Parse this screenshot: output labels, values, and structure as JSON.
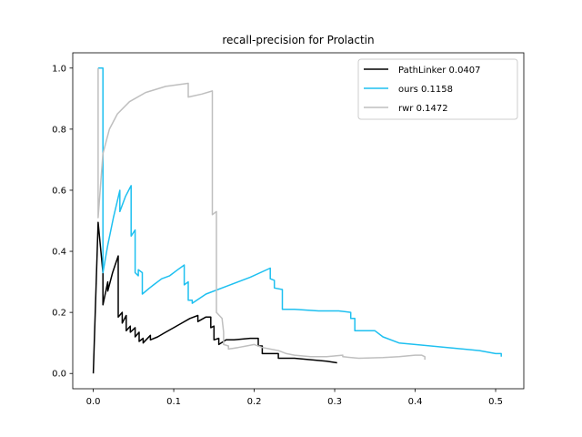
{
  "chart_data": {
    "type": "line",
    "title": "recall-precision for Prolactin",
    "xlabel": "",
    "ylabel": "",
    "xlim": [
      -0.0255,
      0.535
    ],
    "ylim": [
      -0.05,
      1.05
    ],
    "xticks": [
      0.0,
      0.1,
      0.2,
      0.3,
      0.4,
      0.5
    ],
    "xtick_labels": [
      "0.0",
      "0.1",
      "0.2",
      "0.3",
      "0.4",
      "0.5"
    ],
    "yticks": [
      0.0,
      0.2,
      0.4,
      0.6,
      0.8,
      1.0
    ],
    "ytick_labels": [
      "0.0",
      "0.2",
      "0.4",
      "0.6",
      "0.8",
      "1.0"
    ],
    "grid": false,
    "legend_position": "top-right",
    "series": [
      {
        "name": "PathLinker 0.0407",
        "color": "#000000",
        "points": [
          [
            0.0,
            0.0
          ],
          [
            0.006,
            0.495
          ],
          [
            0.012,
            0.33
          ],
          [
            0.012,
            0.225
          ],
          [
            0.018,
            0.3
          ],
          [
            0.018,
            0.27
          ],
          [
            0.024,
            0.33
          ],
          [
            0.031,
            0.385
          ],
          [
            0.031,
            0.185
          ],
          [
            0.036,
            0.2
          ],
          [
            0.036,
            0.165
          ],
          [
            0.041,
            0.19
          ],
          [
            0.041,
            0.14
          ],
          [
            0.046,
            0.155
          ],
          [
            0.046,
            0.135
          ],
          [
            0.052,
            0.15
          ],
          [
            0.052,
            0.12
          ],
          [
            0.057,
            0.135
          ],
          [
            0.057,
            0.105
          ],
          [
            0.062,
            0.115
          ],
          [
            0.062,
            0.1
          ],
          [
            0.071,
            0.125
          ],
          [
            0.071,
            0.11
          ],
          [
            0.08,
            0.12
          ],
          [
            0.09,
            0.135
          ],
          [
            0.1,
            0.15
          ],
          [
            0.11,
            0.165
          ],
          [
            0.12,
            0.18
          ],
          [
            0.13,
            0.19
          ],
          [
            0.13,
            0.17
          ],
          [
            0.14,
            0.185
          ],
          [
            0.146,
            0.185
          ],
          [
            0.146,
            0.15
          ],
          [
            0.15,
            0.155
          ],
          [
            0.15,
            0.11
          ],
          [
            0.156,
            0.115
          ],
          [
            0.156,
            0.095
          ],
          [
            0.165,
            0.11
          ],
          [
            0.175,
            0.11
          ],
          [
            0.195,
            0.115
          ],
          [
            0.205,
            0.115
          ],
          [
            0.205,
            0.09
          ],
          [
            0.21,
            0.09
          ],
          [
            0.21,
            0.065
          ],
          [
            0.23,
            0.065
          ],
          [
            0.23,
            0.05
          ],
          [
            0.25,
            0.05
          ],
          [
            0.27,
            0.045
          ],
          [
            0.29,
            0.04
          ],
          [
            0.303,
            0.035
          ]
        ]
      },
      {
        "name": "ours 0.1158",
        "color": "#1ec0f0",
        "points": [
          [
            0.006,
            1.0
          ],
          [
            0.012,
            1.0
          ],
          [
            0.012,
            0.33
          ],
          [
            0.018,
            0.42
          ],
          [
            0.025,
            0.51
          ],
          [
            0.033,
            0.6
          ],
          [
            0.033,
            0.53
          ],
          [
            0.04,
            0.58
          ],
          [
            0.047,
            0.615
          ],
          [
            0.047,
            0.45
          ],
          [
            0.052,
            0.47
          ],
          [
            0.052,
            0.33
          ],
          [
            0.056,
            0.32
          ],
          [
            0.056,
            0.34
          ],
          [
            0.061,
            0.33
          ],
          [
            0.061,
            0.26
          ],
          [
            0.07,
            0.28
          ],
          [
            0.075,
            0.29
          ],
          [
            0.085,
            0.31
          ],
          [
            0.095,
            0.32
          ],
          [
            0.105,
            0.34
          ],
          [
            0.113,
            0.355
          ],
          [
            0.113,
            0.29
          ],
          [
            0.118,
            0.3
          ],
          [
            0.118,
            0.24
          ],
          [
            0.123,
            0.24
          ],
          [
            0.123,
            0.23
          ],
          [
            0.14,
            0.26
          ],
          [
            0.17,
            0.29
          ],
          [
            0.195,
            0.315
          ],
          [
            0.22,
            0.345
          ],
          [
            0.22,
            0.31
          ],
          [
            0.225,
            0.305
          ],
          [
            0.225,
            0.28
          ],
          [
            0.235,
            0.275
          ],
          [
            0.235,
            0.21
          ],
          [
            0.25,
            0.21
          ],
          [
            0.28,
            0.205
          ],
          [
            0.305,
            0.205
          ],
          [
            0.32,
            0.2
          ],
          [
            0.32,
            0.18
          ],
          [
            0.325,
            0.18
          ],
          [
            0.325,
            0.14
          ],
          [
            0.35,
            0.14
          ],
          [
            0.36,
            0.12
          ],
          [
            0.38,
            0.1
          ],
          [
            0.4,
            0.095
          ],
          [
            0.44,
            0.085
          ],
          [
            0.48,
            0.075
          ],
          [
            0.5,
            0.065
          ],
          [
            0.507,
            0.065
          ],
          [
            0.507,
            0.055
          ]
        ]
      },
      {
        "name": "rwr 0.1472",
        "color": "#bfbfbf",
        "points": [
          [
            0.006,
            1.0
          ],
          [
            0.006,
            0.51
          ],
          [
            0.012,
            0.72
          ],
          [
            0.02,
            0.8
          ],
          [
            0.03,
            0.85
          ],
          [
            0.045,
            0.89
          ],
          [
            0.065,
            0.92
          ],
          [
            0.09,
            0.94
          ],
          [
            0.118,
            0.95
          ],
          [
            0.118,
            0.905
          ],
          [
            0.135,
            0.915
          ],
          [
            0.148,
            0.925
          ],
          [
            0.148,
            0.52
          ],
          [
            0.153,
            0.53
          ],
          [
            0.153,
            0.2
          ],
          [
            0.16,
            0.18
          ],
          [
            0.162,
            0.135
          ],
          [
            0.162,
            0.095
          ],
          [
            0.168,
            0.09
          ],
          [
            0.168,
            0.08
          ],
          [
            0.18,
            0.085
          ],
          [
            0.2,
            0.095
          ],
          [
            0.21,
            0.085
          ],
          [
            0.23,
            0.075
          ],
          [
            0.24,
            0.065
          ],
          [
            0.25,
            0.06
          ],
          [
            0.27,
            0.055
          ],
          [
            0.29,
            0.055
          ],
          [
            0.31,
            0.06
          ],
          [
            0.31,
            0.055
          ],
          [
            0.33,
            0.05
          ],
          [
            0.36,
            0.052
          ],
          [
            0.38,
            0.055
          ],
          [
            0.4,
            0.06
          ],
          [
            0.408,
            0.06
          ],
          [
            0.412,
            0.055
          ],
          [
            0.412,
            0.045
          ]
        ]
      }
    ]
  }
}
